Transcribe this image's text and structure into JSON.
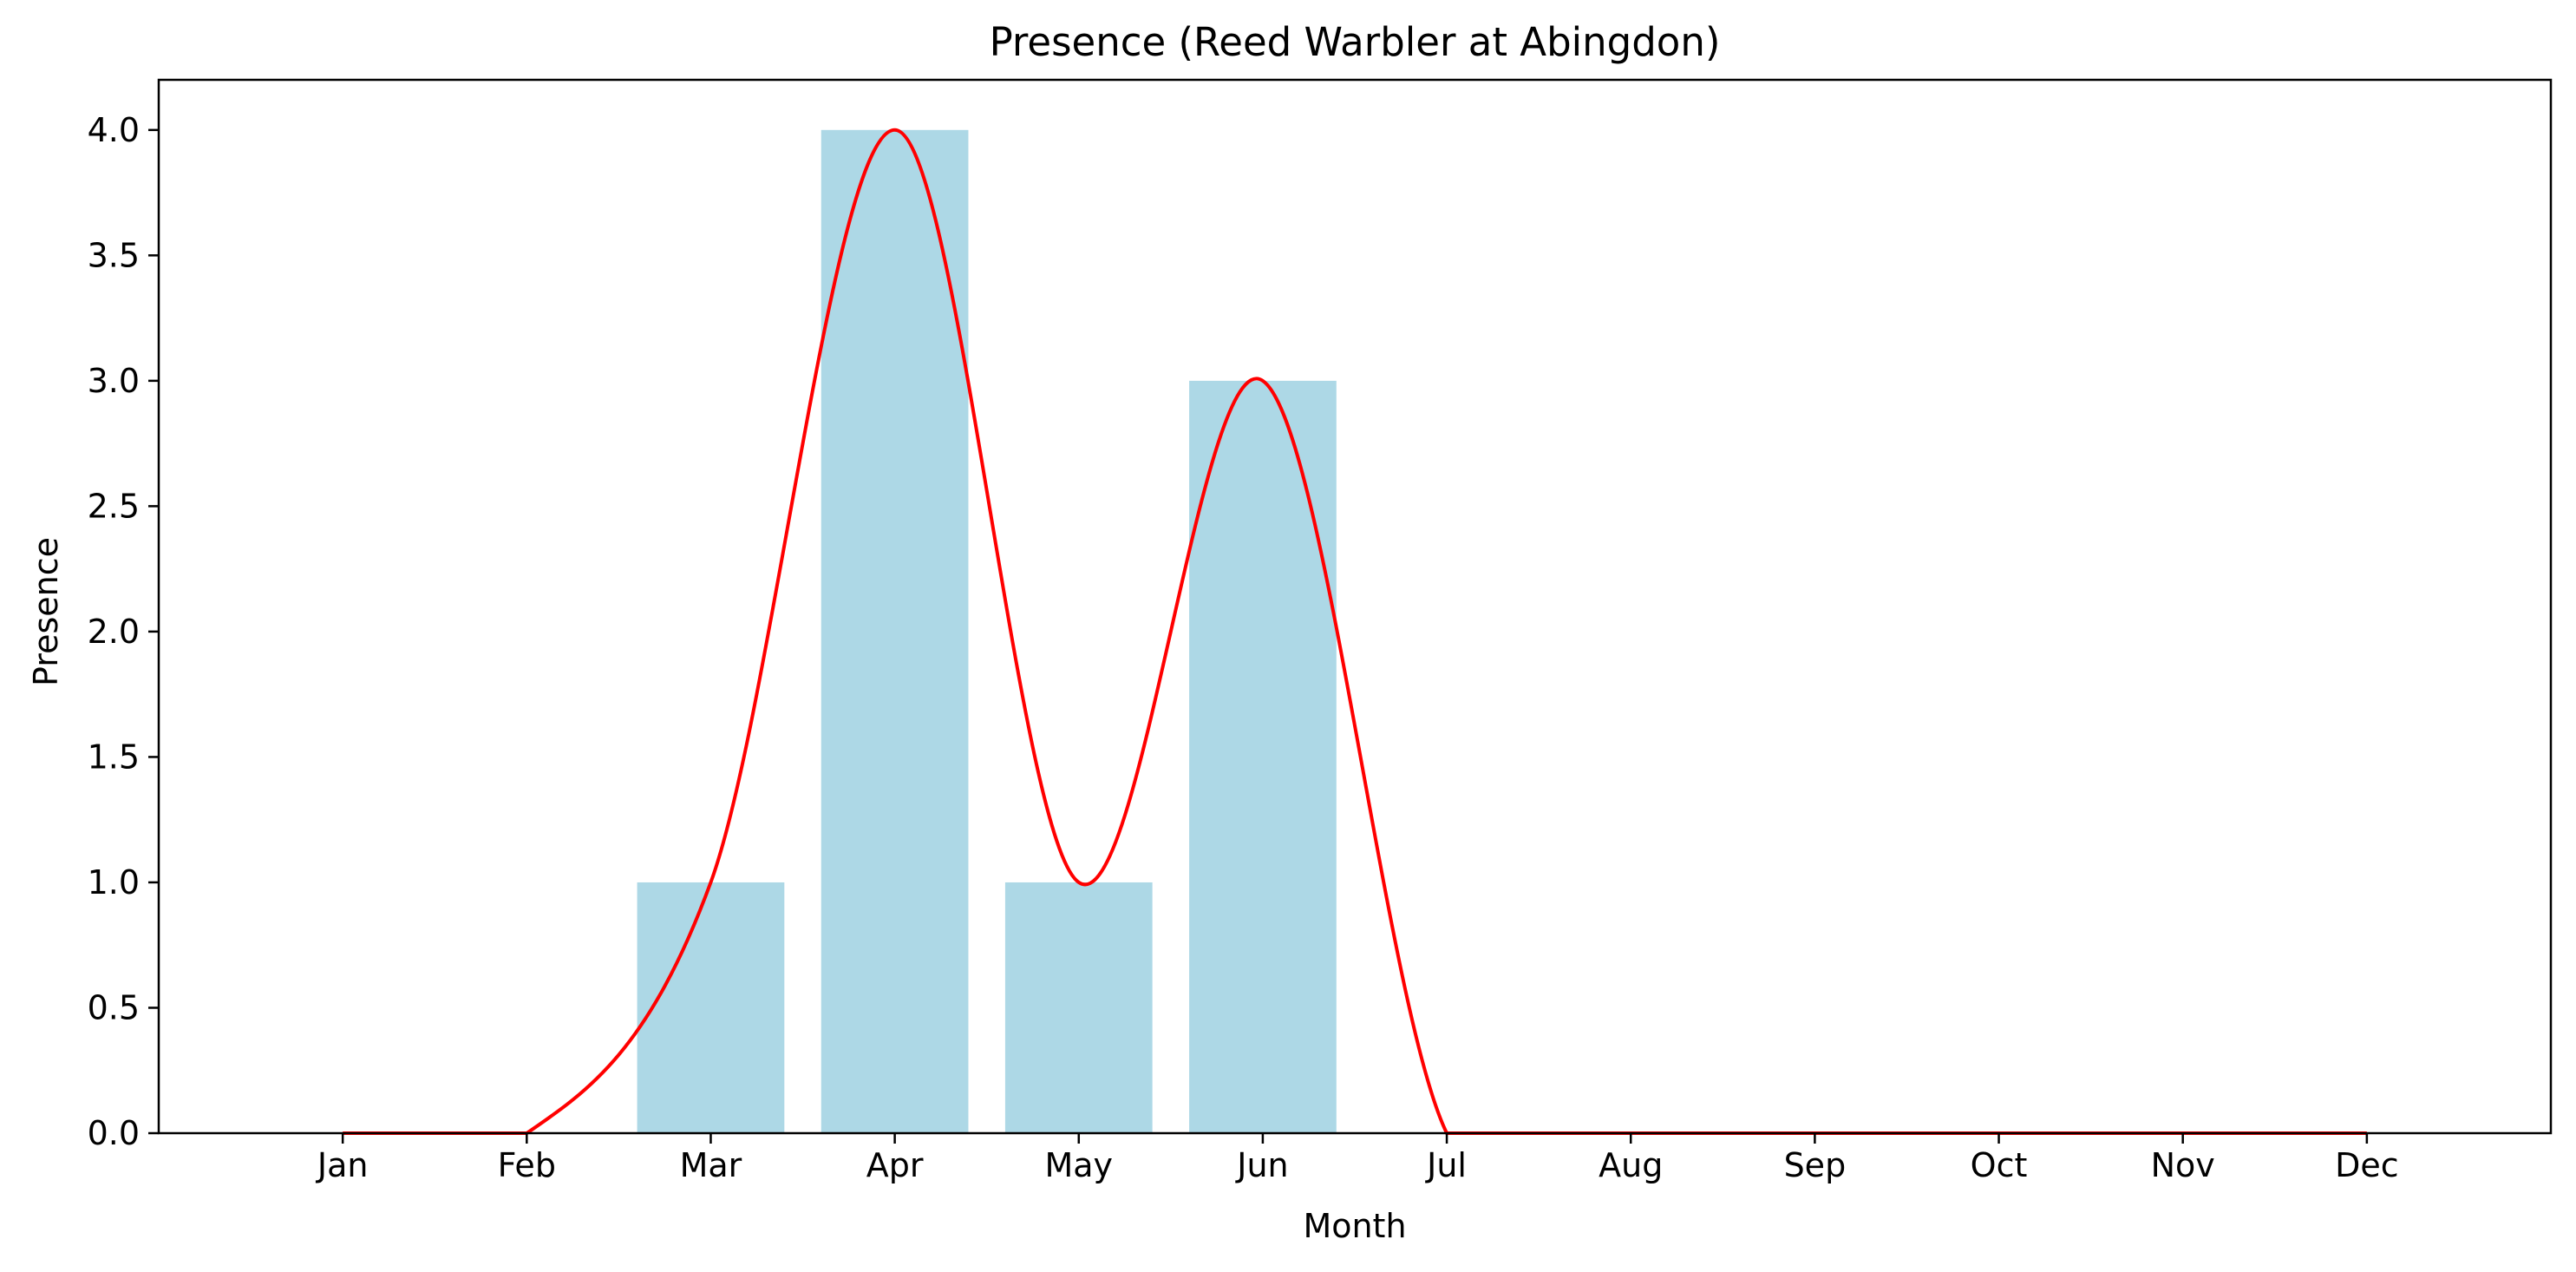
{
  "chart_data": {
    "type": "bar",
    "title": "Presence (Reed Warbler at Abingdon)",
    "xlabel": "Month",
    "ylabel": "Presence",
    "categories": [
      "Jan",
      "Feb",
      "Mar",
      "Apr",
      "May",
      "Jun",
      "Jul",
      "Aug",
      "Sep",
      "Oct",
      "Nov",
      "Dec"
    ],
    "values": [
      0,
      0,
      1,
      4,
      1,
      3,
      0,
      0,
      0,
      0,
      0,
      0
    ],
    "ylim": [
      0,
      4.2
    ],
    "yticks": [
      0.0,
      0.5,
      1.0,
      1.5,
      2.0,
      2.5,
      3.0,
      3.5,
      4.0
    ],
    "ytick_labels": [
      "0.0",
      "0.5",
      "1.0",
      "1.5",
      "2.0",
      "2.5",
      "3.0",
      "3.5",
      "4.0"
    ],
    "grid": false,
    "legend": "none",
    "overlay": {
      "type": "line",
      "smoothed": true,
      "values": [
        0,
        0,
        1,
        4,
        1,
        3,
        0,
        0,
        0,
        0,
        0,
        0
      ]
    },
    "colors": {
      "bar": "#add8e6",
      "line": "#ff0000",
      "axis": "#000000",
      "background": "#ffffff"
    }
  }
}
